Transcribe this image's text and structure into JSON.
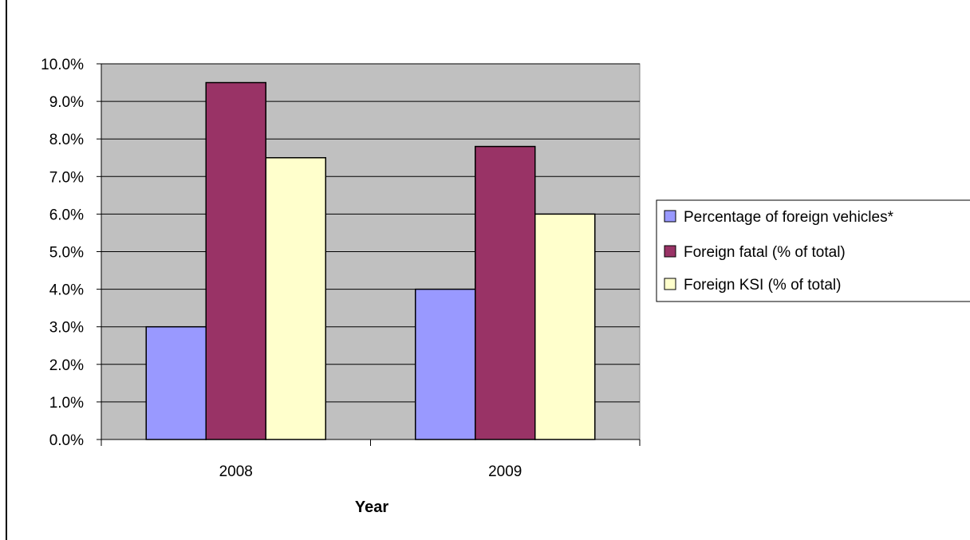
{
  "chart_data": {
    "type": "bar",
    "title": "",
    "xlabel": "Year",
    "ylabel": "",
    "categories": [
      "2008",
      "2009"
    ],
    "series": [
      {
        "name": "Percentage of foreign vehicles*",
        "color": "#9999ff",
        "values": [
          0.03,
          0.04
        ]
      },
      {
        "name": "Foreign fatal (% of total)",
        "color": "#993366",
        "values": [
          0.095,
          0.078
        ]
      },
      {
        "name": "Foreign KSI (% of total)",
        "color": "#ffffcc",
        "values": [
          0.075,
          0.06
        ]
      }
    ],
    "ylim": [
      0,
      0.1
    ],
    "yticks": [
      0.0,
      0.01,
      0.02,
      0.03,
      0.04,
      0.05,
      0.06,
      0.07,
      0.08,
      0.09,
      0.1
    ],
    "ytick_labels": [
      "0.0%",
      "1.0%",
      "2.0%",
      "3.0%",
      "4.0%",
      "5.0%",
      "6.0%",
      "7.0%",
      "8.0%",
      "9.0%",
      "10.0%"
    ],
    "grid": true,
    "plot_background": "#c0c0c0",
    "legend_position": "right"
  }
}
